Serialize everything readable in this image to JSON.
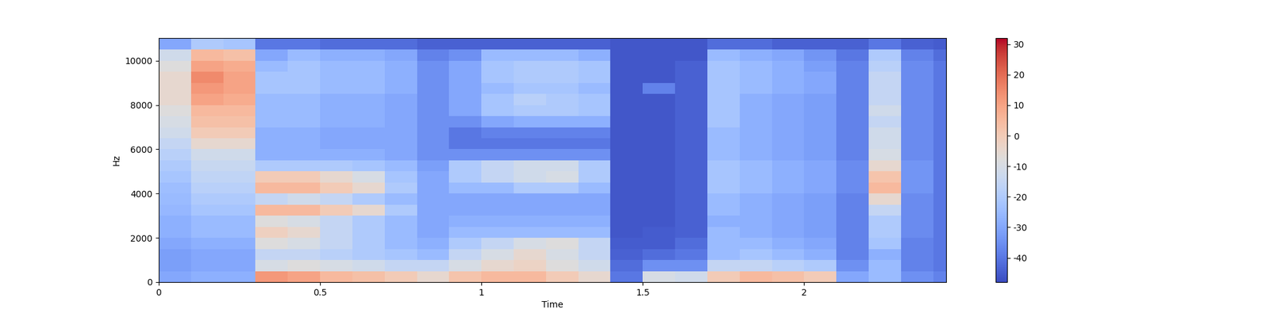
{
  "chart_data": {
    "type": "heatmap",
    "xlabel": "Time",
    "ylabel": "Hz",
    "xlim": [
      0,
      2.44
    ],
    "ylim": [
      0,
      11025
    ],
    "xticks": [
      0,
      0.5,
      1,
      1.5,
      2
    ],
    "yticks": [
      0,
      2000,
      4000,
      6000,
      8000,
      10000
    ],
    "x_edges": [
      0,
      0.1,
      0.2,
      0.3,
      0.4,
      0.5,
      0.6,
      0.7,
      0.8,
      0.9,
      1.0,
      1.1,
      1.2,
      1.3,
      1.4,
      1.5,
      1.6,
      1.7,
      1.8,
      1.9,
      2.0,
      2.1,
      2.2,
      2.3,
      2.4,
      2.44
    ],
    "y_edges": [
      0,
      500,
      1000,
      1500,
      2000,
      2500,
      3000,
      3500,
      4000,
      4500,
      5000,
      5500,
      6000,
      6500,
      7000,
      7500,
      8000,
      8500,
      9000,
      9500,
      10000,
      10500,
      11025
    ],
    "cells": [
      [
        -30,
        -28,
        -28,
        12,
        10,
        5,
        3,
        0,
        -5,
        2,
        5,
        5,
        0,
        -5,
        -40,
        -10,
        -12,
        0,
        5,
        3,
        0,
        -30,
        -25,
        -35,
        -38
      ],
      [
        -32,
        -30,
        -30,
        -10,
        -8,
        -10,
        -12,
        -15,
        -15,
        -10,
        -5,
        -3,
        -8,
        -12,
        -42,
        -35,
        -35,
        -15,
        -15,
        -18,
        -20,
        -35,
        -25,
        -38,
        -40
      ],
      [
        -32,
        -30,
        -30,
        -15,
        -15,
        -18,
        -20,
        -22,
        -25,
        -15,
        -10,
        -5,
        -10,
        -15,
        -44,
        -42,
        -40,
        -25,
        -22,
        -25,
        -28,
        -38,
        -28,
        -38,
        -40
      ],
      [
        -30,
        -28,
        -28,
        -8,
        -10,
        -15,
        -20,
        -25,
        -28,
        -20,
        -15,
        -10,
        -8,
        -15,
        -45,
        -45,
        -42,
        -25,
        -25,
        -28,
        -30,
        -38,
        -22,
        -38,
        -40
      ],
      [
        -28,
        -25,
        -25,
        -2,
        -5,
        -15,
        -20,
        -25,
        -30,
        -25,
        -25,
        -25,
        -25,
        -25,
        -46,
        -45,
        -44,
        -25,
        -28,
        -30,
        -32,
        -38,
        -20,
        -36,
        -40
      ],
      [
        -28,
        -25,
        -25,
        -8,
        -10,
        -15,
        -20,
        -25,
        -30,
        -28,
        -28,
        -28,
        -28,
        -28,
        -46,
        -46,
        -44,
        -28,
        -28,
        -30,
        -32,
        -38,
        -20,
        -36,
        -40
      ],
      [
        -26,
        -22,
        -22,
        5,
        5,
        0,
        -5,
        -20,
        -30,
        -30,
        -30,
        -30,
        -30,
        -30,
        -46,
        -46,
        -44,
        -25,
        -28,
        -30,
        -32,
        -38,
        -15,
        -36,
        -40
      ],
      [
        -25,
        -20,
        -20,
        -15,
        -12,
        -15,
        -20,
        -25,
        -30,
        -30,
        -30,
        -30,
        -30,
        -30,
        -46,
        -46,
        -44,
        -25,
        -28,
        -30,
        -32,
        -38,
        -5,
        -36,
        -40
      ],
      [
        -24,
        -18,
        -18,
        5,
        5,
        0,
        -5,
        -20,
        -30,
        -25,
        -25,
        -20,
        -20,
        -25,
        -46,
        -46,
        -44,
        -22,
        -25,
        -28,
        -30,
        -36,
        5,
        -34,
        -40
      ],
      [
        -22,
        -16,
        -16,
        0,
        0,
        -5,
        -10,
        -22,
        -30,
        -20,
        -15,
        -12,
        -10,
        -20,
        -46,
        -46,
        -44,
        -22,
        -25,
        -28,
        -30,
        -36,
        2,
        -34,
        -40
      ],
      [
        -20,
        -14,
        -14,
        -20,
        -20,
        -20,
        -22,
        -25,
        -32,
        -20,
        -15,
        -12,
        -12,
        -20,
        -46,
        -46,
        -44,
        -22,
        -25,
        -28,
        -30,
        -36,
        -5,
        -34,
        -40
      ],
      [
        -18,
        -12,
        -12,
        -28,
        -28,
        -28,
        -28,
        -30,
        -35,
        -35,
        -35,
        -35,
        -35,
        -35,
        -46,
        -46,
        -44,
        -25,
        -28,
        -30,
        -32,
        -38,
        -10,
        -36,
        -40
      ],
      [
        -15,
        -5,
        -5,
        -28,
        -28,
        -30,
        -30,
        -30,
        -35,
        -40,
        -40,
        -40,
        -40,
        -40,
        -46,
        -46,
        -44,
        -25,
        -28,
        -30,
        -32,
        -38,
        -12,
        -36,
        -40
      ],
      [
        -12,
        0,
        0,
        -28,
        -28,
        -30,
        -30,
        -30,
        -35,
        -40,
        -38,
        -38,
        -38,
        -38,
        -46,
        -46,
        -44,
        -25,
        -28,
        -30,
        -32,
        -38,
        -12,
        -36,
        -40
      ],
      [
        -10,
        3,
        3,
        -25,
        -25,
        -28,
        -28,
        -30,
        -35,
        -35,
        -30,
        -28,
        -28,
        -28,
        -46,
        -46,
        -44,
        -22,
        -28,
        -30,
        -32,
        -38,
        -15,
        -36,
        -40
      ],
      [
        -8,
        5,
        5,
        -25,
        -25,
        -28,
        -28,
        -30,
        -35,
        -30,
        -22,
        -20,
        -20,
        -22,
        -46,
        -46,
        -44,
        -22,
        -28,
        -30,
        -32,
        -38,
        -12,
        -36,
        -40
      ],
      [
        -5,
        10,
        8,
        -25,
        -25,
        -28,
        -28,
        -30,
        -35,
        -30,
        -22,
        -18,
        -20,
        -22,
        -46,
        -46,
        -44,
        -22,
        -28,
        -30,
        -32,
        -38,
        -15,
        -36,
        -40
      ],
      [
        -5,
        12,
        10,
        -22,
        -22,
        -25,
        -25,
        -28,
        -35,
        -30,
        -25,
        -22,
        -22,
        -25,
        -46,
        -38,
        -44,
        -22,
        -25,
        -28,
        -30,
        -38,
        -15,
        -36,
        -40
      ],
      [
        -5,
        15,
        10,
        -22,
        -22,
        -25,
        -25,
        -28,
        -35,
        -30,
        -22,
        -20,
        -20,
        -22,
        -46,
        -46,
        -44,
        -22,
        -25,
        -28,
        -30,
        -38,
        -15,
        -36,
        -40
      ],
      [
        -8,
        10,
        8,
        -25,
        -22,
        -25,
        -25,
        -28,
        -35,
        -30,
        -22,
        -20,
        -20,
        -22,
        -46,
        -46,
        -44,
        -22,
        -25,
        -28,
        -32,
        -38,
        -18,
        -36,
        -40
      ],
      [
        -12,
        5,
        3,
        -30,
        -25,
        -28,
        -28,
        -30,
        -38,
        -35,
        -25,
        -25,
        -25,
        -28,
        -46,
        -46,
        -46,
        -25,
        -28,
        -30,
        -34,
        -40,
        -20,
        -38,
        -42
      ],
      [
        -30,
        -20,
        -22,
        -40,
        -40,
        -42,
        -42,
        -42,
        -44,
        -44,
        -44,
        -44,
        -44,
        -44,
        -46,
        -46,
        -46,
        -42,
        -42,
        -44,
        -44,
        -44,
        -40,
        -44,
        -45
      ]
    ],
    "colorbar_range": [
      -48,
      32
    ],
    "colorbar_ticks": [
      -40,
      -30,
      -20,
      -10,
      0,
      10,
      20,
      30
    ]
  }
}
